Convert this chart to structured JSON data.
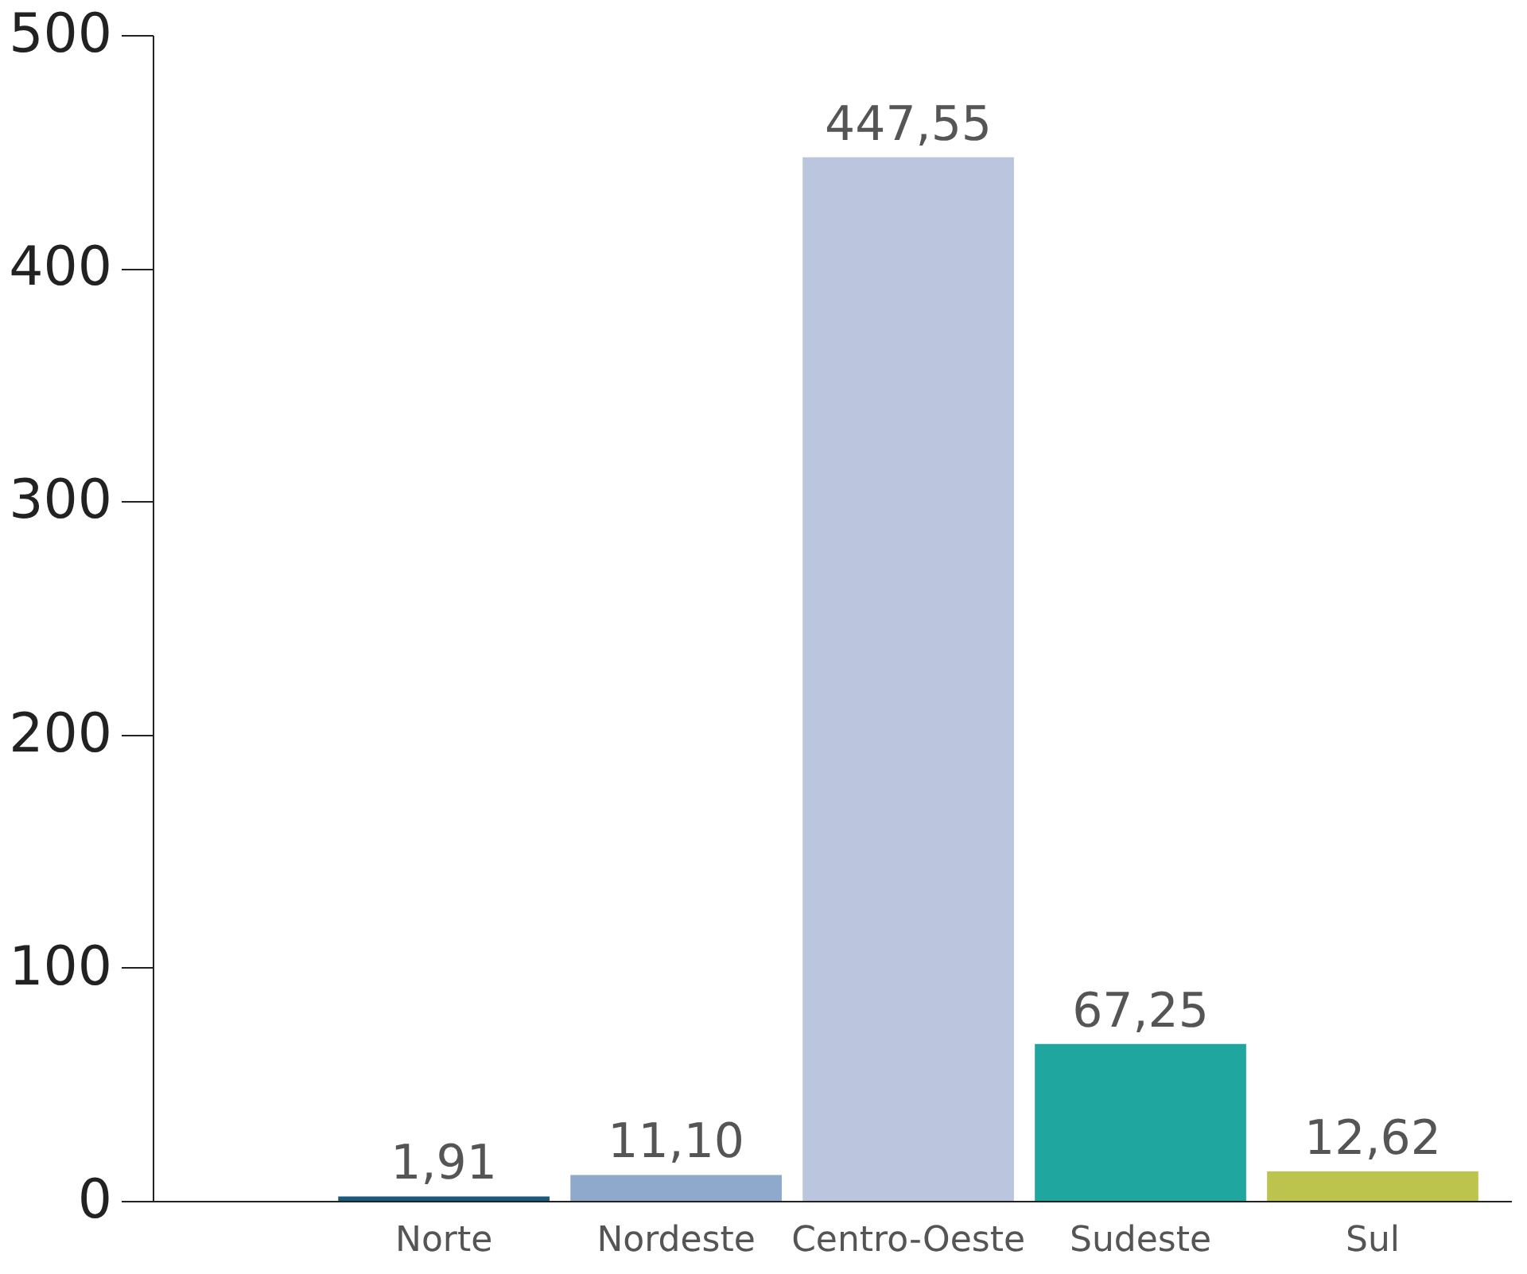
{
  "chart_data": {
    "type": "bar",
    "categories": [
      "Norte",
      "Nordeste",
      "Centro-Oeste",
      "Sudeste",
      "Sul"
    ],
    "values": [
      1.91,
      11.1,
      447.55,
      67.25,
      12.62
    ],
    "colors": [
      "#1a5a7a",
      "#8ea9cc",
      "#bbc6de",
      "#1fa69e",
      "#bcc44e"
    ],
    "value_labels": [
      "1,91",
      "11,10",
      "447,55",
      "67,25",
      "12,62"
    ],
    "ylim": [
      0,
      500
    ],
    "yticks": [
      0,
      100,
      200,
      300,
      400,
      500
    ],
    "grid": false
  }
}
